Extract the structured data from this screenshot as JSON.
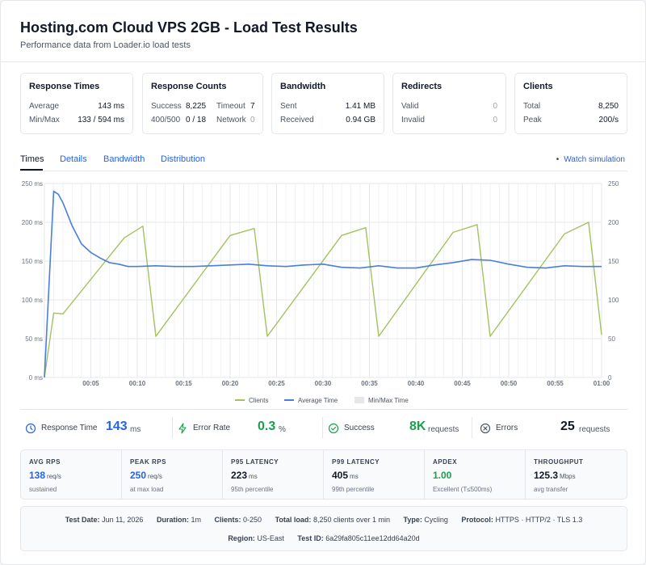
{
  "header": {
    "title": "Hosting.com Cloud VPS 2GB - Load Test Results",
    "subtitle": "Performance data from Loader.io load tests"
  },
  "cards": {
    "response_times": {
      "title": "Response Times",
      "average_label": "Average",
      "average": "143 ms",
      "minmax_label": "Min/Max",
      "minmax": "133 / 594 ms"
    },
    "response_counts": {
      "title": "Response Counts",
      "success_label": "Success",
      "success": "8,225",
      "timeout_label": "Timeout",
      "timeout": "7",
      "err_label": "400/500",
      "err": "0 / 18",
      "network_label": "Network",
      "network": "0"
    },
    "bandwidth": {
      "title": "Bandwidth",
      "sent_label": "Sent",
      "sent": "1.41 MB",
      "received_label": "Received",
      "received": "0.94 GB"
    },
    "redirects": {
      "title": "Redirects",
      "valid_label": "Valid",
      "valid": "0",
      "invalid_label": "Invalid",
      "invalid": "0"
    },
    "clients": {
      "title": "Clients",
      "total_label": "Total",
      "total": "8,250",
      "peak_label": "Peak",
      "peak": "200/s"
    }
  },
  "tabs": {
    "times": "Times",
    "details": "Details",
    "bandwidth": "Bandwidth",
    "distribution": "Distribution",
    "watch": "Watch simulation"
  },
  "chart_data": {
    "type": "line",
    "x_ticks": [
      "00:05",
      "00:10",
      "00:15",
      "00:20",
      "00:25",
      "00:30",
      "00:35",
      "00:40",
      "00:45",
      "00:50",
      "00:55",
      "01:00"
    ],
    "xlim": [
      0,
      60
    ],
    "y_left_ticks": [
      "0 ms",
      "50 ms",
      "100 ms",
      "150 ms",
      "200 ms",
      "250 ms"
    ],
    "y_right_ticks": [
      "0",
      "50",
      "100",
      "150",
      "200",
      "250"
    ],
    "ylim": [
      0,
      250
    ],
    "legend": [
      "Clients",
      "Average Time",
      "Min/Max Time"
    ],
    "colors": {
      "clients": "#a3c25f",
      "average": "#4a7fd8",
      "minmax": "#e5e7eb"
    },
    "series": [
      {
        "name": "Clients",
        "x": [
          0,
          1,
          2,
          8.6,
          10.6,
          12,
          20,
          22.6,
          24,
          32,
          34.6,
          36,
          44,
          46.6,
          48,
          56,
          58.6,
          60
        ],
        "values": [
          0,
          83,
          82,
          180,
          195,
          53,
          183,
          192,
          53,
          183,
          193,
          53,
          187,
          197,
          53,
          185,
          200,
          55
        ]
      },
      {
        "name": "Average Time",
        "x": [
          0,
          1,
          1.5,
          2,
          3,
          4,
          5,
          6,
          7,
          8,
          9,
          10,
          12,
          14,
          16,
          18,
          20,
          22,
          24,
          26,
          28,
          30,
          32,
          34,
          36,
          38,
          40,
          42,
          44,
          46,
          48,
          50,
          52,
          54,
          56,
          58,
          60
        ],
        "values": [
          0,
          240,
          236,
          225,
          195,
          172,
          161,
          154,
          148,
          146,
          143,
          143,
          144,
          143,
          143,
          144,
          145,
          146,
          144,
          143,
          145,
          146,
          142,
          141,
          144,
          141,
          141,
          145,
          148,
          152,
          151,
          146,
          142,
          141,
          144,
          143,
          143
        ]
      }
    ]
  },
  "stats": {
    "response_time_label": "Response Time",
    "response_time": "143",
    "response_time_unit": "ms",
    "error_rate_label": "Error Rate",
    "error_rate": "0.3",
    "error_rate_unit": "%",
    "success_label": "Success",
    "success": "8K",
    "success_unit": "requests",
    "errors_label": "Errors",
    "errors": "25",
    "errors_unit": "requests"
  },
  "metrics": [
    {
      "title": "AVG RPS",
      "value": "138",
      "unit": "req/s",
      "sub": "sustained",
      "color": "#2563eb"
    },
    {
      "title": "PEAK RPS",
      "value": "250",
      "unit": "req/s",
      "sub": "at max load",
      "color": "#2563eb"
    },
    {
      "title": "P95 LATENCY",
      "value": "223",
      "unit": "ms",
      "sub": "95th percentile",
      "color": "#111827"
    },
    {
      "title": "P99 LATENCY",
      "value": "405",
      "unit": "ms",
      "sub": "99th percentile",
      "color": "#111827"
    },
    {
      "title": "APDEX",
      "value": "1.00",
      "unit": "",
      "sub": "Excellent (T≤500ms)",
      "color": "#16a34a"
    },
    {
      "title": "THROUGHPUT",
      "value": "125.3",
      "unit": "Mbps",
      "sub": "avg transfer",
      "color": "#111827"
    }
  ],
  "info": {
    "test_date_label": "Test Date:",
    "test_date": "Jun 11, 2026",
    "duration_label": "Duration:",
    "duration": "1m",
    "clients_label": "Clients:",
    "clients": "0-250",
    "total_load_label": "Total load:",
    "total_load": "8,250 clients over 1 min",
    "type_label": "Type:",
    "type": "Cycling",
    "protocol_label": "Protocol:",
    "protocol": "HTTPS · HTTP/2 · TLS 1.3",
    "region_label": "Region:",
    "region": "US-East",
    "test_id_label": "Test ID:",
    "test_id": "6a29fa805c11ee12dd64a20d"
  }
}
